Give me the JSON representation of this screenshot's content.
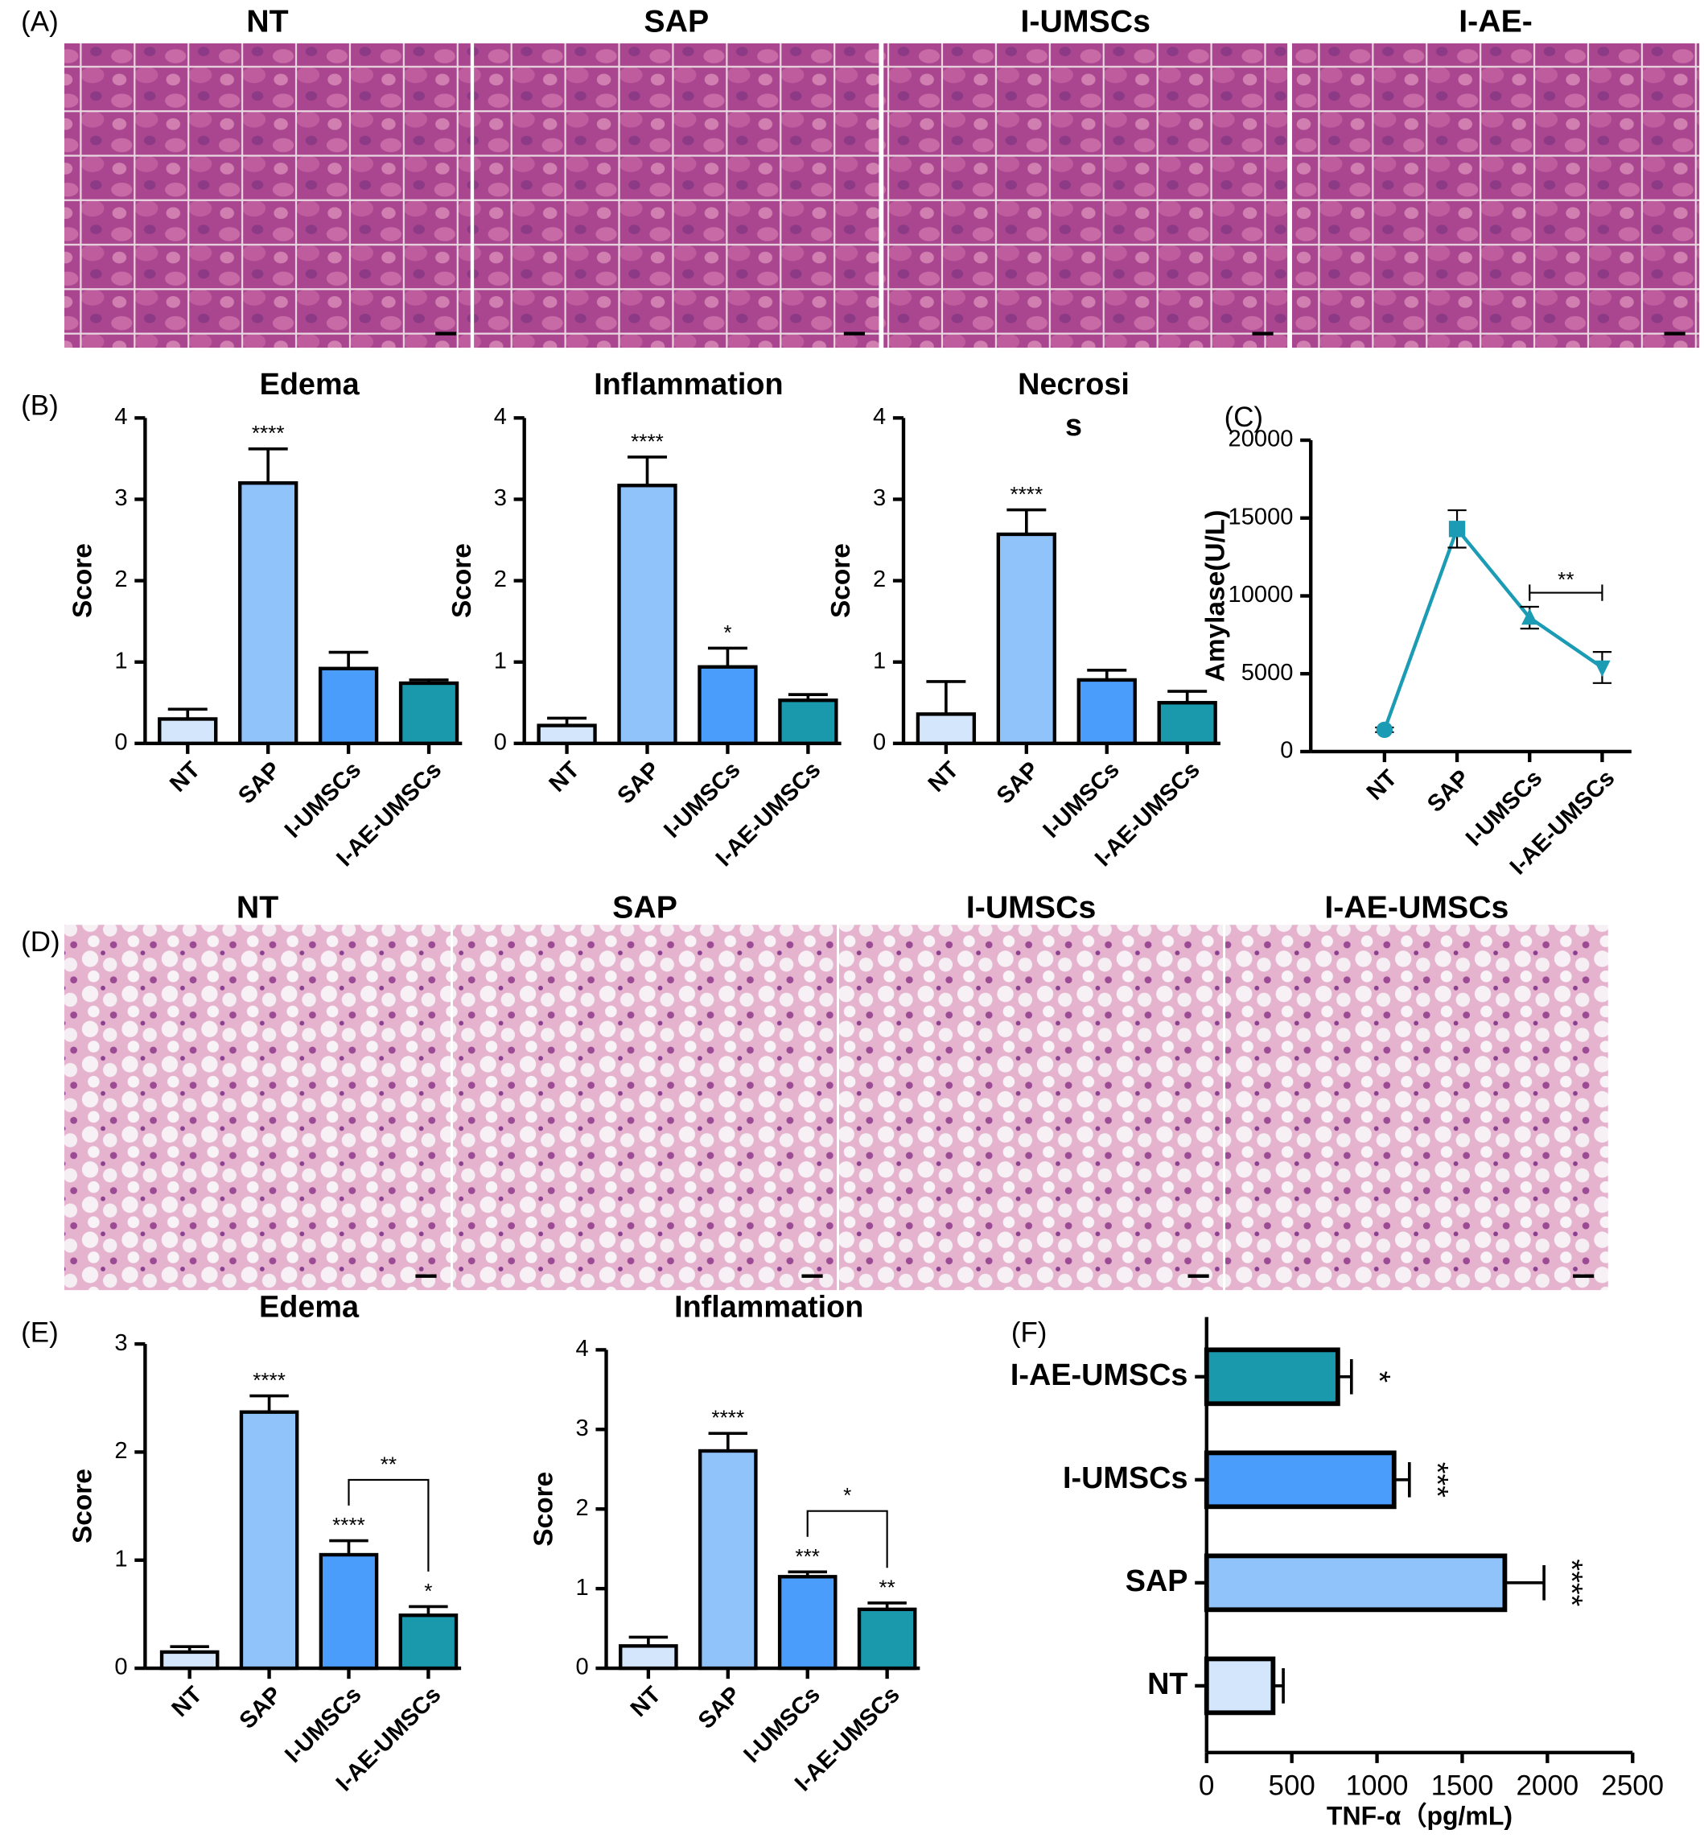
{
  "figure": {
    "panel_labels": [
      "(A)",
      "(B)",
      "(C)",
      "(D)",
      "(E)",
      "(F)"
    ],
    "pancreas_images": [
      "NT",
      "SAP",
      "I-UMSCs",
      "I-AE-"
    ],
    "lung_images": [
      "NT",
      "SAP",
      "I-UMSCs",
      "I-AE-UMSCs"
    ]
  },
  "chart_data": [
    {
      "type": "bar",
      "title": "Edema",
      "categories": [
        "NT",
        "SAP",
        "I-UMSCs",
        "I-AE-UMSCs"
      ],
      "values": [
        0.3,
        3.2,
        0.92,
        0.74
      ],
      "errors": [
        0.12,
        0.42,
        0.2,
        0.04
      ],
      "significance": [
        null,
        "****",
        null,
        null
      ],
      "colors": [
        "#d3e6fb",
        "#91c3fb",
        "#4a9dfb",
        "#1a98ac"
      ],
      "ylim": [
        0,
        4
      ],
      "yticks": [
        0,
        1,
        2,
        3,
        4
      ],
      "y_label": "Score"
    },
    {
      "type": "bar",
      "title": "Inflammation",
      "categories": [
        "NT",
        "SAP",
        "I-UMSCs",
        "I-AE-UMSCs"
      ],
      "values": [
        0.22,
        3.17,
        0.94,
        0.53
      ],
      "errors": [
        0.09,
        0.35,
        0.23,
        0.07
      ],
      "significance": [
        null,
        "****",
        "*",
        null
      ],
      "colors": [
        "#d3e6fb",
        "#91c3fb",
        "#4a9dfb",
        "#1a98ac"
      ],
      "ylim": [
        0,
        4
      ],
      "yticks": [
        0,
        1,
        2,
        3,
        4
      ],
      "y_label": "Score"
    },
    {
      "type": "bar",
      "title": [
        "Necrosi",
        "s"
      ],
      "categories": [
        "NT",
        "SAP",
        "I-UMSCs",
        "I-AE-UMSCs"
      ],
      "values": [
        0.36,
        2.57,
        0.78,
        0.5
      ],
      "errors": [
        0.4,
        0.3,
        0.12,
        0.14
      ],
      "significance": [
        null,
        "****",
        null,
        null
      ],
      "colors": [
        "#d3e6fb",
        "#91c3fb",
        "#4a9dfb",
        "#1a98ac"
      ],
      "ylim": [
        0,
        4
      ],
      "yticks": [
        0,
        1,
        2,
        3,
        4
      ],
      "y_label": "Score"
    },
    {
      "type": "line",
      "categories": [
        "NT",
        "SAP",
        "I-UMSCs",
        "I-AE-UMSCs"
      ],
      "values": [
        1400,
        14300,
        8600,
        5400
      ],
      "errors": [
        150,
        1200,
        700,
        1000
      ],
      "color": "#1b9bb4",
      "markers": [
        "circle",
        "square",
        "triangle-up",
        "triangle-down"
      ],
      "ylim": [
        0,
        20000
      ],
      "yticks": [
        0,
        5000,
        10000,
        15000,
        20000
      ],
      "y_label": "Amylase(U/L)",
      "comparisons": [
        {
          "between": [
            "I-UMSCs",
            "I-AE-UMSCs"
          ],
          "label": "**"
        }
      ]
    },
    {
      "type": "bar",
      "title": "Edema",
      "categories": [
        "NT",
        "SAP",
        "I-UMSCs",
        "I-AE-UMSCs"
      ],
      "values": [
        0.15,
        2.37,
        1.05,
        0.49
      ],
      "errors": [
        0.05,
        0.15,
        0.13,
        0.08
      ],
      "significance": [
        null,
        "****",
        "****",
        "*"
      ],
      "colors": [
        "#d3e6fb",
        "#91c3fb",
        "#4a9dfb",
        "#1a98ac"
      ],
      "ylim": [
        0,
        3
      ],
      "yticks": [
        0,
        1,
        2,
        3
      ],
      "y_label": "Score",
      "comparisons": [
        {
          "between": [
            "I-UMSCs",
            "I-AE-UMSCs"
          ],
          "label": "**"
        }
      ]
    },
    {
      "type": "bar",
      "title": "Inflammation",
      "categories": [
        "NT",
        "SAP",
        "I-UMSCs",
        "I-AE-UMSCs"
      ],
      "values": [
        0.28,
        2.73,
        1.15,
        0.74
      ],
      "errors": [
        0.11,
        0.22,
        0.06,
        0.08
      ],
      "significance": [
        null,
        "****",
        "***",
        "**"
      ],
      "colors": [
        "#d3e6fb",
        "#91c3fb",
        "#4a9dfb",
        "#1a98ac"
      ],
      "ylim": [
        0,
        4
      ],
      "yticks": [
        0,
        1,
        2,
        3,
        4
      ],
      "y_label": "Score",
      "comparisons": [
        {
          "between": [
            "I-UMSCs",
            "I-AE-UMSCs"
          ],
          "label": "*"
        }
      ]
    },
    {
      "type": "barh",
      "categories": [
        "NT",
        "SAP",
        "I-UMSCs",
        "I-AE-UMSCs"
      ],
      "values": [
        390,
        1750,
        1100,
        770
      ],
      "errors": [
        60,
        230,
        90,
        80
      ],
      "significance": [
        null,
        "****",
        "***",
        "*"
      ],
      "colors": [
        "#d3e6fb",
        "#91c3fb",
        "#4a9dfb",
        "#1a98ac"
      ],
      "xlim": [
        0,
        2500
      ],
      "xticks": [
        0,
        500,
        1000,
        1500,
        2000,
        2500
      ],
      "x_label": "TNF-α（pg/mL)"
    }
  ]
}
